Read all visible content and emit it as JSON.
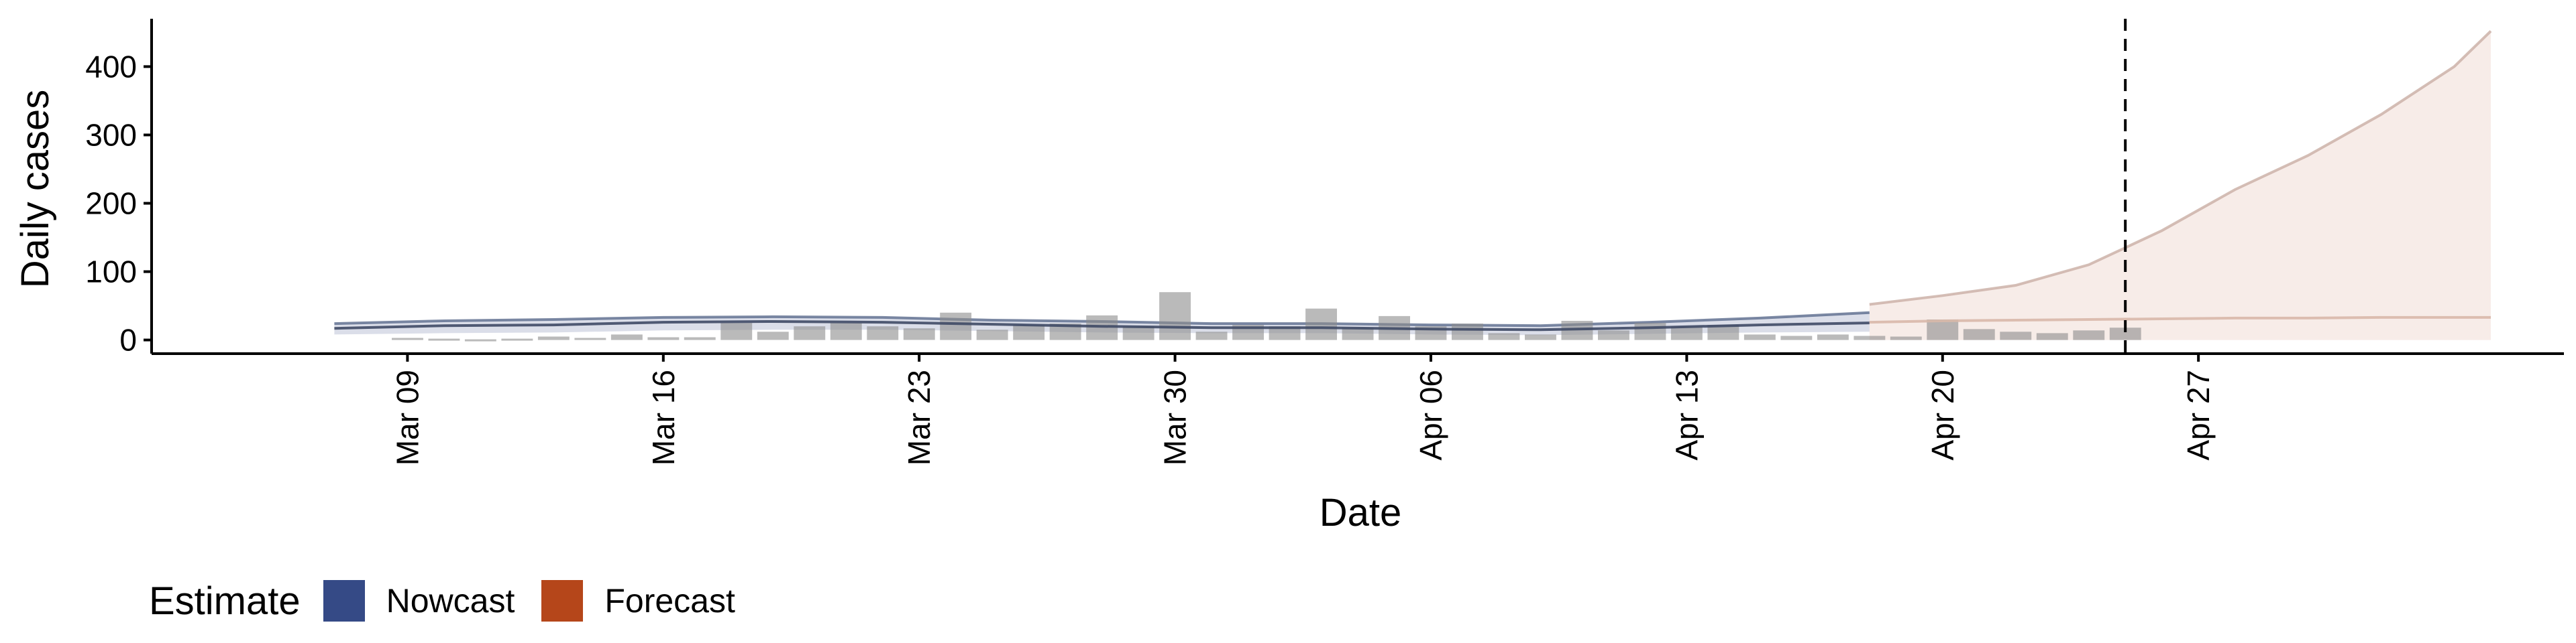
{
  "chart_data": {
    "type": "bar",
    "xlabel": "Date",
    "ylabel": "Daily cases",
    "y_ticks": [
      "0",
      "100",
      "200",
      "300",
      "400"
    ],
    "ylim": [
      -20,
      470
    ],
    "x_ticks": [
      {
        "label": "Mar 09",
        "date": "2020-03-09"
      },
      {
        "label": "Mar 16",
        "date": "2020-03-16"
      },
      {
        "label": "Mar 23",
        "date": "2020-03-23"
      },
      {
        "label": "Mar 30",
        "date": "2020-03-30"
      },
      {
        "label": "Apr 06",
        "date": "2020-04-06"
      },
      {
        "label": "Apr 13",
        "date": "2020-04-13"
      },
      {
        "label": "Apr 20",
        "date": "2020-04-20"
      },
      {
        "label": "Apr 27",
        "date": "2020-04-27"
      }
    ],
    "xlim": [
      "2020-03-02",
      "2020-05-07"
    ],
    "reference_line_date": "2020-04-25",
    "grid": false,
    "legend_position": "bottom-left",
    "reported_cases": {
      "dates": [
        "2020-03-09",
        "2020-03-10",
        "2020-03-11",
        "2020-03-12",
        "2020-03-13",
        "2020-03-14",
        "2020-03-15",
        "2020-03-16",
        "2020-03-17",
        "2020-03-18",
        "2020-03-19",
        "2020-03-20",
        "2020-03-21",
        "2020-03-22",
        "2020-03-23",
        "2020-03-24",
        "2020-03-25",
        "2020-03-26",
        "2020-03-27",
        "2020-03-28",
        "2020-03-29",
        "2020-03-30",
        "2020-03-31",
        "2020-04-01",
        "2020-04-02",
        "2020-04-03",
        "2020-04-04",
        "2020-04-05",
        "2020-04-06",
        "2020-04-07",
        "2020-04-08",
        "2020-04-09",
        "2020-04-10",
        "2020-04-11",
        "2020-04-12",
        "2020-04-13",
        "2020-04-14",
        "2020-04-15",
        "2020-04-16",
        "2020-04-17",
        "2020-04-18",
        "2020-04-19",
        "2020-04-20",
        "2020-04-21",
        "2020-04-22",
        "2020-04-23",
        "2020-04-24",
        "2020-04-25"
      ],
      "values": [
        3,
        2,
        1,
        2,
        5,
        3,
        8,
        4,
        4,
        25,
        12,
        20,
        25,
        20,
        17,
        40,
        15,
        22,
        24,
        36,
        20,
        70,
        12,
        22,
        20,
        46,
        18,
        35,
        20,
        24,
        10,
        8,
        28,
        14,
        25,
        20,
        22,
        8,
        6,
        8,
        6,
        5,
        30,
        16,
        12,
        10,
        14,
        18
      ]
    },
    "series": [
      {
        "name": "Nowcast",
        "color": "#354A86",
        "dates": [
          "2020-03-07",
          "2020-03-10",
          "2020-03-13",
          "2020-03-16",
          "2020-03-19",
          "2020-03-22",
          "2020-03-25",
          "2020-03-28",
          "2020-03-31",
          "2020-04-03",
          "2020-04-06",
          "2020-04-09",
          "2020-04-12",
          "2020-04-15",
          "2020-04-18"
        ],
        "median": [
          17,
          21,
          22,
          26,
          27,
          26,
          23,
          20,
          18,
          18,
          16,
          15,
          18,
          22,
          25
        ],
        "lower": [
          8,
          10,
          11,
          14,
          15,
          15,
          13,
          11,
          10,
          10,
          8,
          7,
          9,
          11,
          12
        ],
        "upper": [
          24,
          28,
          30,
          33,
          34,
          33,
          29,
          27,
          24,
          24,
          22,
          21,
          26,
          32,
          40
        ]
      },
      {
        "name": "Forecast",
        "color": "#B5461A",
        "dates": [
          "2020-04-18",
          "2020-04-20",
          "2020-04-22",
          "2020-04-24",
          "2020-04-26",
          "2020-04-28",
          "2020-04-30",
          "2020-05-02",
          "2020-05-04",
          "2020-05-05"
        ],
        "median": [
          26,
          28,
          29,
          30,
          31,
          32,
          32,
          33,
          33,
          33
        ],
        "lower": [
          0,
          0,
          0,
          0,
          0,
          0,
          0,
          0,
          0,
          0
        ],
        "upper": [
          52,
          65,
          80,
          110,
          160,
          220,
          270,
          330,
          400,
          452
        ]
      }
    ]
  },
  "legend": {
    "title": "Estimate",
    "items": [
      {
        "label": "Nowcast",
        "color": "#354A86"
      },
      {
        "label": "Forecast",
        "color": "#B5461A"
      }
    ]
  }
}
